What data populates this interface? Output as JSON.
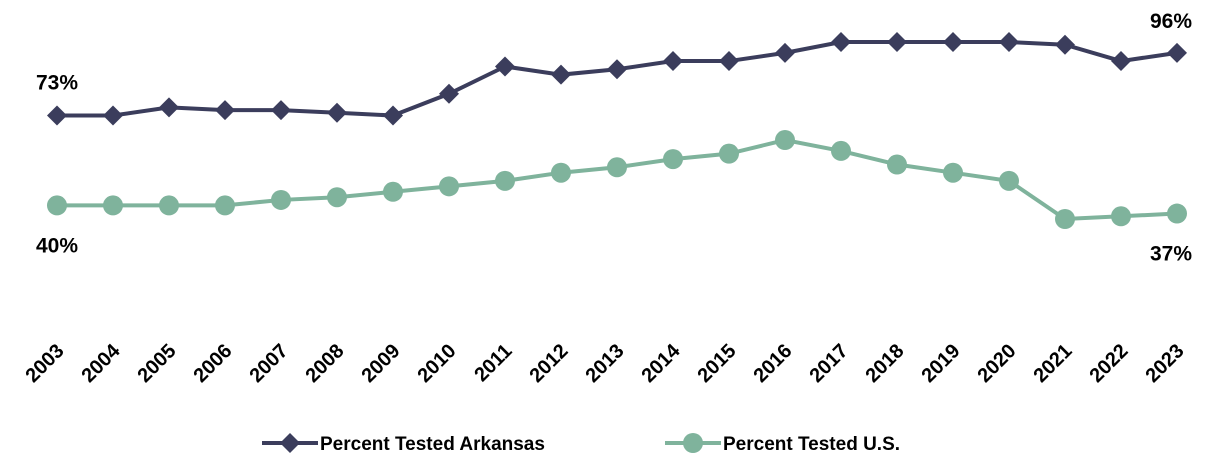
{
  "chart_data": {
    "type": "line",
    "categories": [
      "2003",
      "2004",
      "2005",
      "2006",
      "2007",
      "2008",
      "2009",
      "2010",
      "2011",
      "2012",
      "2013",
      "2014",
      "2015",
      "2016",
      "2017",
      "2018",
      "2019",
      "2020",
      "2021",
      "2022",
      "2023"
    ],
    "series": [
      {
        "name": "Percent Tested Arkansas",
        "color": "#3b3d5c",
        "marker": "diamond",
        "values": [
          73,
          73,
          76,
          75,
          75,
          74,
          73,
          81,
          91,
          88,
          90,
          93,
          93,
          96,
          100,
          100,
          100,
          100,
          99,
          93,
          96
        ],
        "value_labels": [
          "73%",
          null,
          null,
          null,
          null,
          null,
          null,
          null,
          null,
          null,
          null,
          null,
          null,
          null,
          null,
          null,
          null,
          null,
          null,
          null,
          "96%"
        ]
      },
      {
        "name": "Percent Tested U.S.",
        "color": "#7fb39c",
        "marker": "circle",
        "values": [
          40,
          40,
          40,
          40,
          42,
          43,
          45,
          47,
          49,
          52,
          54,
          57,
          59,
          64,
          60,
          55,
          52,
          49,
          35,
          36,
          37
        ],
        "value_labels": [
          "40%",
          null,
          null,
          null,
          null,
          null,
          null,
          null,
          null,
          null,
          null,
          null,
          null,
          null,
          null,
          null,
          null,
          null,
          null,
          null,
          "37%"
        ]
      }
    ],
    "legend": "bottom"
  }
}
